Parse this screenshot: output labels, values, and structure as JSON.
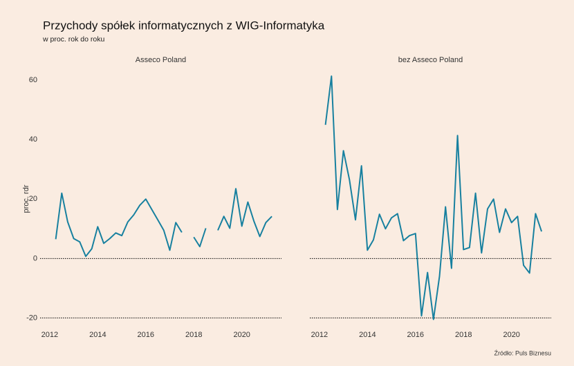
{
  "header": {
    "title": "Przychody spółek informatycznych z WIG-Informatyka",
    "subtitle": "w proc. rok do roku",
    "y_label": "proc. rdr",
    "source": "Źródło: Puls Biznesu"
  },
  "chart_data": [
    {
      "type": "line",
      "title": "Asseco Poland",
      "x": [
        2012.25,
        2012.5,
        2012.75,
        2013,
        2013.25,
        2013.5,
        2013.75,
        2014,
        2014.25,
        2014.5,
        2014.75,
        2015,
        2015.25,
        2015.5,
        2015.75,
        2016,
        2016.25,
        2016.5,
        2016.75,
        2017,
        2017.25,
        2017.5,
        2017.75,
        2018,
        2018.25,
        2018.5,
        2018.75,
        2019,
        2019.25,
        2019.5,
        2019.75,
        2020,
        2020.25,
        2020.5,
        2020.75,
        2021,
        2021.25
      ],
      "series": [
        {
          "name": "Asseco Poland",
          "color": "#17809f",
          "values": [
            6.5,
            22,
            12.3,
            6.7,
            5.6,
            0.7,
            3.3,
            10.7,
            5.1,
            6.7,
            8.6,
            7.7,
            12.3,
            14.7,
            17.9,
            20,
            16.5,
            13,
            9.5,
            2.8,
            12.1,
            8.8,
            null,
            7.2,
            4,
            10.2,
            null,
            9.5,
            14.2,
            10.2,
            23.5,
            10.9,
            19,
            12.6,
            7.4,
            12.1,
            14.2
          ]
        }
      ],
      "xlim": [
        2011.6,
        2021.65
      ],
      "xticks": [
        2012,
        2014,
        2016,
        2018,
        2020
      ],
      "ylim": [
        -22,
        64
      ],
      "yticks": [
        -20,
        0,
        20,
        40,
        60
      ],
      "hlines": [
        0,
        -20
      ]
    },
    {
      "type": "line",
      "title": "bez Asseco Poland",
      "x": [
        2012.25,
        2012.5,
        2012.75,
        2013,
        2013.25,
        2013.5,
        2013.75,
        2014,
        2014.25,
        2014.5,
        2014.75,
        2015,
        2015.25,
        2015.5,
        2015.75,
        2016,
        2016.25,
        2016.5,
        2016.75,
        2017,
        2017.25,
        2017.5,
        2017.75,
        2018,
        2018.25,
        2018.5,
        2018.75,
        2019,
        2019.25,
        2019.5,
        2019.75,
        2020,
        2020.25,
        2020.5,
        2020.75,
        2021,
        2021.25
      ],
      "series": [
        {
          "name": "bez Asseco Poland",
          "color": "#17809f",
          "values": [
            45,
            61.4,
            16.5,
            36.3,
            26.5,
            13,
            31.2,
            2.8,
            6.3,
            14.9,
            10,
            13.7,
            15.1,
            6,
            7.7,
            8.4,
            -19.3,
            -4.7,
            -20.5,
            -6,
            17.4,
            -3.3,
            41.4,
            3,
            3.7,
            22,
            1.9,
            16.7,
            20,
            8.8,
            16.7,
            12.1,
            14.2,
            -2.3,
            -4.9,
            15.1,
            9.1
          ]
        }
      ],
      "xlim": [
        2011.6,
        2021.65
      ],
      "xticks": [
        2012,
        2014,
        2016,
        2018,
        2020
      ],
      "ylim": [
        -22,
        64
      ],
      "hlines": [
        0,
        -20
      ]
    }
  ]
}
